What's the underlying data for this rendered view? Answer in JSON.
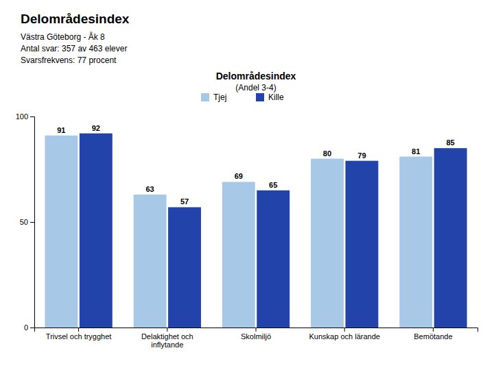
{
  "chart_data": {
    "type": "bar",
    "title": "Delområdesindex",
    "subtitle": [
      "Västra Göteborg - Åk 8",
      "Antal svar: 357 av 463 elever",
      "Svarsfrekvens: 77 procent"
    ],
    "annotations": [
      "Delområdesindex",
      "(Andel 3-4)"
    ],
    "categories": [
      "Trivsel och trygghet",
      "Delaktighet och\ninflytande",
      "Skolmiljö",
      "Kunskap och lärande",
      "Bemötande"
    ],
    "series": [
      {
        "name": "Tjej",
        "color": "#A8C8E8",
        "values": [
          91,
          63,
          69,
          80,
          81
        ]
      },
      {
        "name": "Kille",
        "color": "#2244AA",
        "values": [
          92,
          57,
          65,
          79,
          85
        ]
      }
    ],
    "ylim": [
      0,
      100
    ],
    "yticks": [
      0,
      50,
      100
    ],
    "grid": false,
    "legend": "top",
    "data_labels": true
  }
}
